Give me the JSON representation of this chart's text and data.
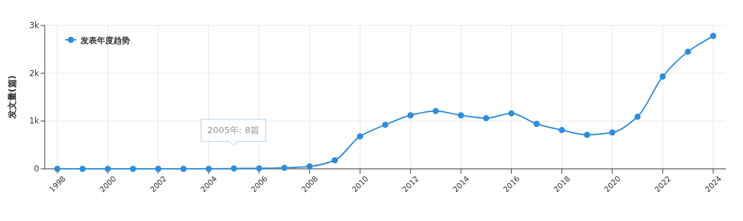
{
  "chart_data": {
    "type": "line",
    "ylabel": "发文量(篇)",
    "x": [
      1998,
      1999,
      2000,
      2001,
      2002,
      2003,
      2004,
      2005,
      2006,
      2007,
      2008,
      2009,
      2010,
      2011,
      2012,
      2013,
      2014,
      2015,
      2016,
      2017,
      2018,
      2019,
      2020,
      2021,
      2022,
      2023,
      2024
    ],
    "series": [
      {
        "name": "发表年度趋势",
        "color": "#2f8ddb",
        "values": [
          0,
          0,
          0,
          0,
          0,
          0,
          0,
          8,
          10,
          20,
          50,
          180,
          680,
          920,
          1120,
          1210,
          1120,
          1060,
          1160,
          940,
          810,
          710,
          760,
          1090,
          1930,
          2450,
          2780
        ]
      }
    ],
    "xlim": [
      1997.5,
      2024.5
    ],
    "xticks": [
      1998,
      2000,
      2002,
      2004,
      2006,
      2008,
      2010,
      2012,
      2014,
      2016,
      2018,
      2020,
      2022,
      2024
    ],
    "ylim": [
      0,
      3000
    ],
    "yticks": [
      0,
      {
        "value": 1000,
        "label": "1k"
      },
      {
        "value": 2000,
        "label": "2k"
      },
      {
        "value": 3000,
        "label": "3k"
      }
    ],
    "grid": true,
    "legend": "top left",
    "marker": "circle",
    "line_style": "solid",
    "annotations": [
      "2005年: 8篇"
    ]
  }
}
